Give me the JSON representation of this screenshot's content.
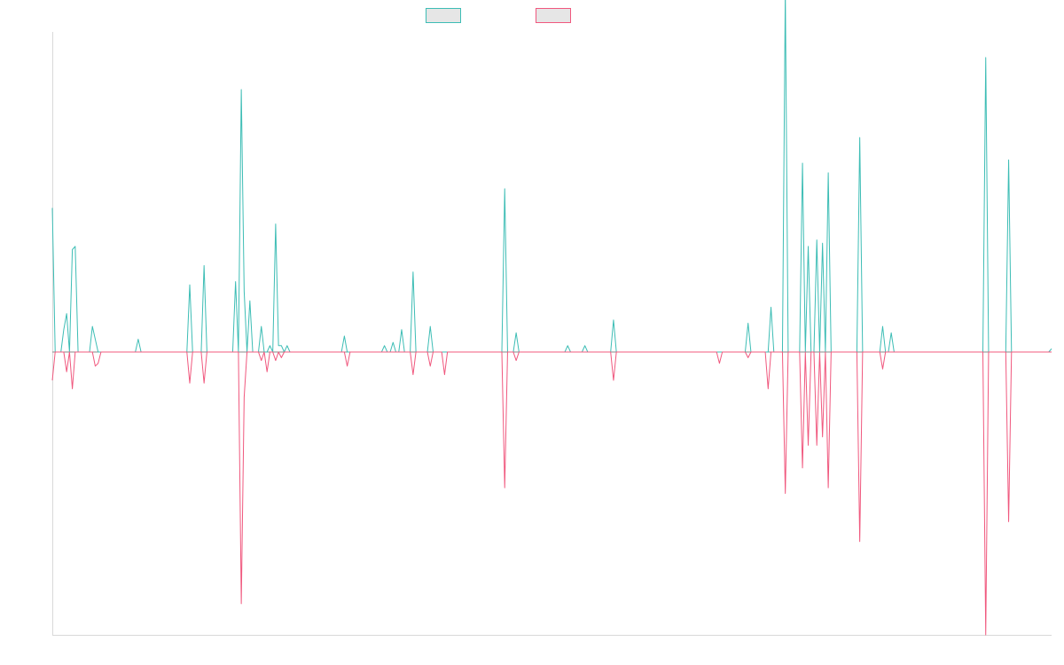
{
  "chart_data": {
    "type": "line",
    "title": "",
    "xlabel": "",
    "ylabel": "",
    "ylim": [
      -100,
      100
    ],
    "grid": false,
    "legend_position": "top-center",
    "colors": {
      "series_a": "#3dbdb5",
      "series_b": "#f0587e",
      "axis": "#d9d9d9"
    },
    "series": [
      {
        "color": "#3dbdb5",
        "spikes": [
          [
            0,
            45
          ],
          [
            2,
            0
          ],
          [
            4,
            7
          ],
          [
            5,
            12
          ],
          [
            7,
            32
          ],
          [
            8,
            33
          ],
          [
            9,
            0
          ],
          [
            14,
            8
          ],
          [
            15,
            4
          ],
          [
            30,
            4
          ],
          [
            48,
            21
          ],
          [
            53,
            27
          ],
          [
            64,
            22
          ],
          [
            66,
            82
          ],
          [
            67,
            19
          ],
          [
            68,
            0
          ],
          [
            69,
            16
          ],
          [
            73,
            8
          ],
          [
            76,
            2
          ],
          [
            78,
            40
          ],
          [
            79,
            2
          ],
          [
            80,
            2
          ],
          [
            82,
            2
          ],
          [
            102,
            5
          ],
          [
            116,
            2
          ],
          [
            119,
            3
          ],
          [
            122,
            7
          ],
          [
            126,
            25
          ],
          [
            132,
            8
          ],
          [
            158,
            51
          ],
          [
            162,
            6
          ],
          [
            180,
            2
          ],
          [
            186,
            2
          ],
          [
            196,
            10
          ],
          [
            243,
            9
          ],
          [
            251,
            14
          ],
          [
            256,
            113
          ],
          [
            262,
            59
          ],
          [
            264,
            33
          ],
          [
            267,
            35
          ],
          [
            268,
            0
          ],
          [
            269,
            34
          ],
          [
            271,
            56
          ],
          [
            282,
            67
          ],
          [
            283,
            0
          ],
          [
            290,
            8
          ],
          [
            293,
            6
          ],
          [
            326,
            92
          ],
          [
            334,
            60
          ],
          [
            349,
            1
          ]
        ]
      },
      {
        "color": "#f0587e",
        "spikes": [
          [
            0,
            -10
          ],
          [
            5,
            -7
          ],
          [
            7,
            -13
          ],
          [
            8,
            0
          ],
          [
            15,
            -5
          ],
          [
            16,
            -4
          ],
          [
            48,
            -11
          ],
          [
            53,
            -11
          ],
          [
            66,
            -89
          ],
          [
            67,
            -16
          ],
          [
            73,
            -3
          ],
          [
            75,
            -7
          ],
          [
            78,
            -3
          ],
          [
            80,
            -2
          ],
          [
            103,
            -5
          ],
          [
            126,
            -8
          ],
          [
            132,
            -5
          ],
          [
            137,
            -8
          ],
          [
            158,
            -48
          ],
          [
            162,
            -3
          ],
          [
            196,
            -10
          ],
          [
            233,
            -4
          ],
          [
            243,
            -2
          ],
          [
            250,
            -13
          ],
          [
            256,
            -50
          ],
          [
            262,
            -41
          ],
          [
            264,
            -33
          ],
          [
            267,
            -33
          ],
          [
            268,
            0
          ],
          [
            269,
            -30
          ],
          [
            271,
            -48
          ],
          [
            282,
            -67
          ],
          [
            283,
            0
          ],
          [
            290,
            -6
          ],
          [
            326,
            -100
          ],
          [
            334,
            -60
          ]
        ]
      }
    ],
    "x_count": 350
  }
}
